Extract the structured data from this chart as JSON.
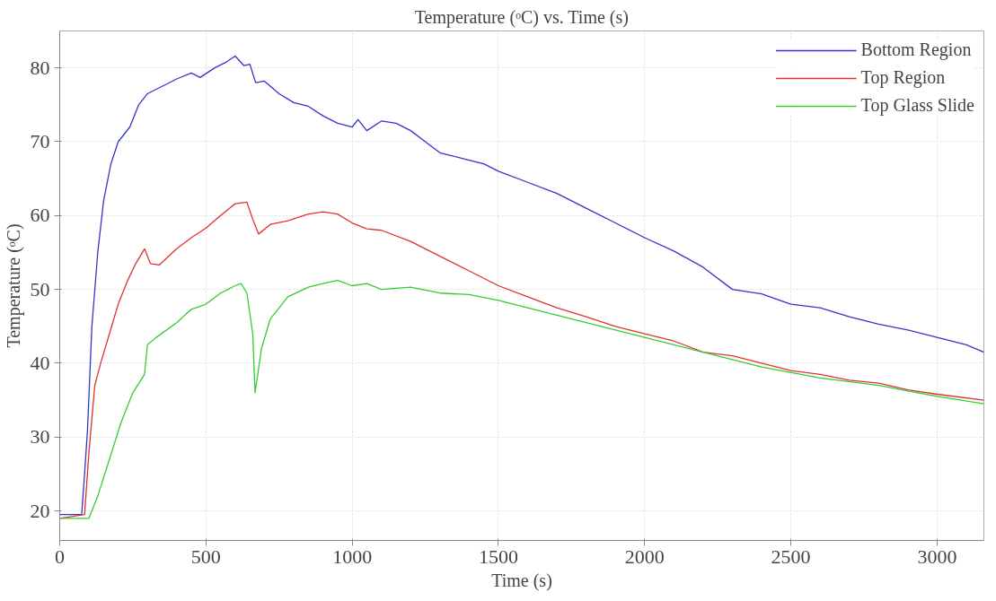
{
  "chart_data": {
    "type": "line",
    "title": "Temperature (ᵒC) vs. Time (s)",
    "xlabel": "Time (s)",
    "ylabel": "Temperature (ᵒC)",
    "xlim": [
      0,
      3160
    ],
    "ylim": [
      16,
      85
    ],
    "xticks": [
      0,
      500,
      1000,
      1500,
      2000,
      2500,
      3000
    ],
    "yticks": [
      20,
      30,
      40,
      50,
      60,
      70,
      80
    ],
    "grid": true,
    "legend": "top right",
    "line_style": "solid",
    "series": [
      {
        "name": "Bottom Region",
        "color": "#3333cc",
        "x": [
          0,
          75,
          85,
          95,
          110,
          130,
          150,
          175,
          200,
          240,
          270,
          300,
          350,
          400,
          450,
          480,
          530,
          570,
          600,
          630,
          650,
          670,
          700,
          750,
          800,
          850,
          900,
          950,
          1000,
          1020,
          1050,
          1100,
          1150,
          1200,
          1250,
          1300,
          1400,
          1450,
          1500,
          1600,
          1700,
          1800,
          1900,
          2000,
          2100,
          2200,
          2300,
          2400,
          2500,
          2600,
          2700,
          2800,
          2900,
          3000,
          3100,
          3160
        ],
        "values": [
          19.5,
          19.5,
          25,
          31,
          45,
          55,
          62,
          67,
          70,
          72,
          75,
          76.5,
          77.5,
          78.5,
          79.3,
          78.7,
          80,
          80.8,
          81.6,
          80.3,
          80.5,
          78,
          78.2,
          76.5,
          75.3,
          74.8,
          73.5,
          72.5,
          72,
          73,
          71.5,
          72.8,
          72.5,
          71.5,
          70,
          68.5,
          67.5,
          67,
          66,
          64.5,
          63,
          61,
          59,
          57,
          55.2,
          53,
          50,
          49.4,
          48,
          47.5,
          46.3,
          45.3,
          44.5,
          43.5,
          42.5,
          41.5
        ]
      },
      {
        "name": "Top Region",
        "color": "#e03030",
        "x": [
          0,
          85,
          100,
          120,
          140,
          170,
          200,
          230,
          260,
          290,
          310,
          340,
          400,
          450,
          500,
          550,
          600,
          640,
          660,
          680,
          720,
          780,
          850,
          900,
          950,
          1000,
          1050,
          1100,
          1200,
          1300,
          1400,
          1500,
          1600,
          1700,
          1800,
          1900,
          2000,
          2100,
          2200,
          2300,
          2400,
          2500,
          2600,
          2700,
          2800,
          2900,
          3000,
          3160
        ],
        "values": [
          19,
          19.5,
          28,
          37,
          40,
          44,
          48,
          51,
          53.5,
          55.5,
          53.5,
          53.3,
          55.5,
          57,
          58.3,
          60,
          61.6,
          61.8,
          59.5,
          57.5,
          58.8,
          59.3,
          60.2,
          60.5,
          60.2,
          59,
          58.2,
          58,
          56.5,
          54.5,
          52.5,
          50.5,
          49,
          47.5,
          46.3,
          45,
          44,
          43,
          41.5,
          41,
          40,
          39,
          38.5,
          37.7,
          37.3,
          36.4,
          35.8,
          35
        ]
      },
      {
        "name": "Top Glass Slide",
        "color": "#33cc33",
        "x": [
          0,
          100,
          130,
          170,
          210,
          250,
          290,
          300,
          330,
          400,
          450,
          500,
          550,
          600,
          620,
          640,
          660,
          668,
          690,
          720,
          780,
          850,
          900,
          950,
          1000,
          1050,
          1100,
          1200,
          1300,
          1400,
          1500,
          1600,
          1800,
          2000,
          2200,
          2400,
          2600,
          2800,
          3000,
          3160
        ],
        "values": [
          19,
          19,
          22,
          27,
          32,
          36,
          38.5,
          42.5,
          43.5,
          45.5,
          47.3,
          48,
          49.5,
          50.5,
          50.8,
          49.5,
          44,
          36,
          42,
          46,
          49,
          50.3,
          50.8,
          51.2,
          50.5,
          50.8,
          50,
          50.3,
          49.5,
          49.3,
          48.5,
          47.5,
          45.5,
          43.5,
          41.5,
          39.5,
          38,
          37,
          35.5,
          34.5
        ]
      }
    ]
  }
}
